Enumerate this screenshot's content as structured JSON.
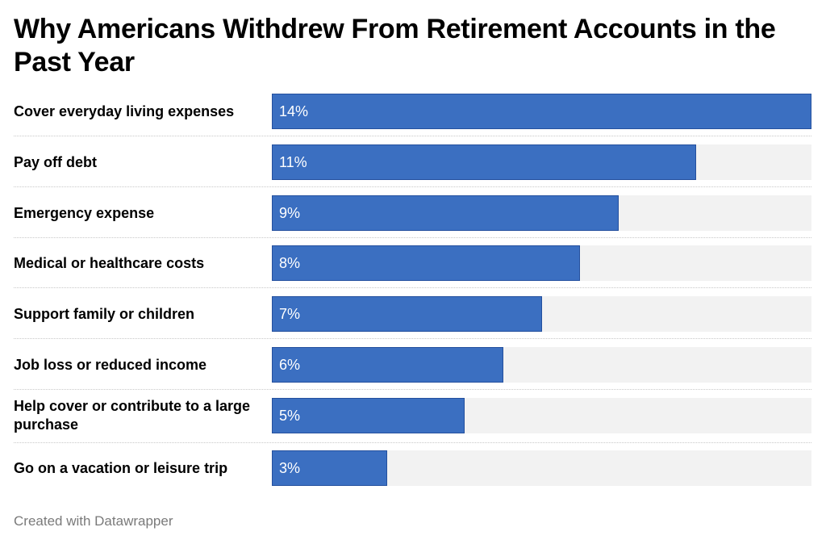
{
  "colors": {
    "bar": "#3b6fc1",
    "track": "#f2f2f2",
    "text": "#000000",
    "value_text": "#ffffff",
    "footer": "#7a7a7a"
  },
  "chart_data": {
    "type": "bar",
    "orientation": "horizontal",
    "title": "Why Americans Withdrew From Retirement Accounts in the Past Year",
    "categories": [
      "Cover everyday living expenses",
      "Pay off debt",
      "Emergency expense",
      "Medical or healthcare costs",
      "Support family or children",
      "Job loss or reduced income",
      "Help cover or contribute to a large purchase",
      "Go on a vacation or leisure trip"
    ],
    "values": [
      14,
      11,
      9,
      8,
      7,
      6,
      5,
      3
    ],
    "value_labels": [
      "14%",
      "11%",
      "9%",
      "8%",
      "7%",
      "6%",
      "5%",
      "3%"
    ],
    "xlim": [
      0,
      14
    ],
    "grid": false
  },
  "footer": {
    "credit": "Created with Datawrapper"
  }
}
